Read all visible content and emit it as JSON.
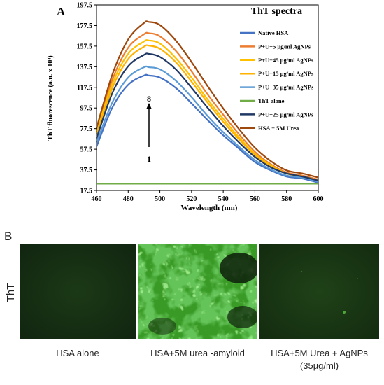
{
  "panelA": {
    "label": "A",
    "chart_data": {
      "type": "line",
      "title": "ThT spectra",
      "xlabel": "Wavelength (nm)",
      "ylabel": "ThT fluorescence (a.u. x 10⁴)",
      "xlim": [
        460,
        600
      ],
      "ylim": [
        17.5,
        197.5
      ],
      "xticks": [
        460,
        480,
        500,
        520,
        540,
        560,
        580,
        600
      ],
      "yticks": [
        17.5,
        37.5,
        57.5,
        77.5,
        97.5,
        117.5,
        137.5,
        157.5,
        177.5,
        197.5
      ],
      "grid": false,
      "legend_position": "right",
      "x": [
        460,
        470,
        480,
        490,
        493,
        500,
        510,
        520,
        530,
        540,
        550,
        560,
        570,
        580,
        590,
        600
      ],
      "series": [
        {
          "name": "Native HSA",
          "color": "#4472C4",
          "values": [
            60,
            98,
            120,
            129,
            129,
            127,
            117,
            102,
            86,
            71,
            58,
            45,
            37,
            31,
            29,
            25
          ]
        },
        {
          "name": "P+U+5 µg/ml AgNPs",
          "color": "#ED7D31",
          "values": [
            76,
            125,
            156,
            169,
            170,
            167,
            153,
            133,
            111,
            91,
            72,
            55,
            43,
            35,
            32,
            28
          ]
        },
        {
          "name": "P+U+45 µg/ml AgNPs",
          "color": "#FFC000",
          "values": [
            74,
            121,
            150,
            162,
            163,
            160,
            146,
            127,
            106,
            87,
            69,
            53,
            42,
            34,
            31,
            27
          ]
        },
        {
          "name": "P+U+15 µg/ml AgNPs",
          "color": "#FFB300",
          "values": [
            72,
            117,
            145,
            157,
            158,
            155,
            142,
            123,
            103,
            84,
            67,
            52,
            41,
            34,
            31,
            27
          ]
        },
        {
          "name": "P+U+35 µg/ml AgNPs",
          "color": "#5B9BD5",
          "values": [
            64,
            103,
            127,
            137,
            137,
            135,
            124,
            108,
            90,
            74,
            60,
            47,
            38,
            32,
            30,
            26
          ]
        },
        {
          "name": "ThT alone",
          "color": "#70AD47",
          "values": [
            24,
            24,
            24,
            24,
            24,
            24,
            24,
            24,
            24,
            24,
            24,
            24,
            24,
            24,
            24,
            24
          ]
        },
        {
          "name": "P+U+25 µg/ml AgNPs",
          "color": "#1F3864",
          "values": [
            68,
            112,
            138,
            149,
            150,
            147,
            135,
            117,
            98,
            80,
            64,
            50,
            40,
            34,
            31,
            27
          ]
        },
        {
          "name": "HSA + 5M Urea",
          "color": "#9E480E",
          "values": [
            78,
            130,
            164,
            180,
            181,
            178,
            163,
            142,
            119,
            97,
            77,
            59,
            46,
            37,
            34,
            30
          ]
        }
      ],
      "annotations": {
        "arrow_top_label": "8",
        "arrow_bottom_label": "1"
      }
    }
  },
  "panelB": {
    "label": "B",
    "stain_label": "ThT",
    "images": [
      {
        "caption_lines": [
          "HSA alone"
        ]
      },
      {
        "caption_lines": [
          "HSA+5M urea -amyloid"
        ]
      },
      {
        "caption_lines": [
          "HSA+5M Urea + AgNPs",
          "(35µg/ml)"
        ]
      }
    ]
  }
}
